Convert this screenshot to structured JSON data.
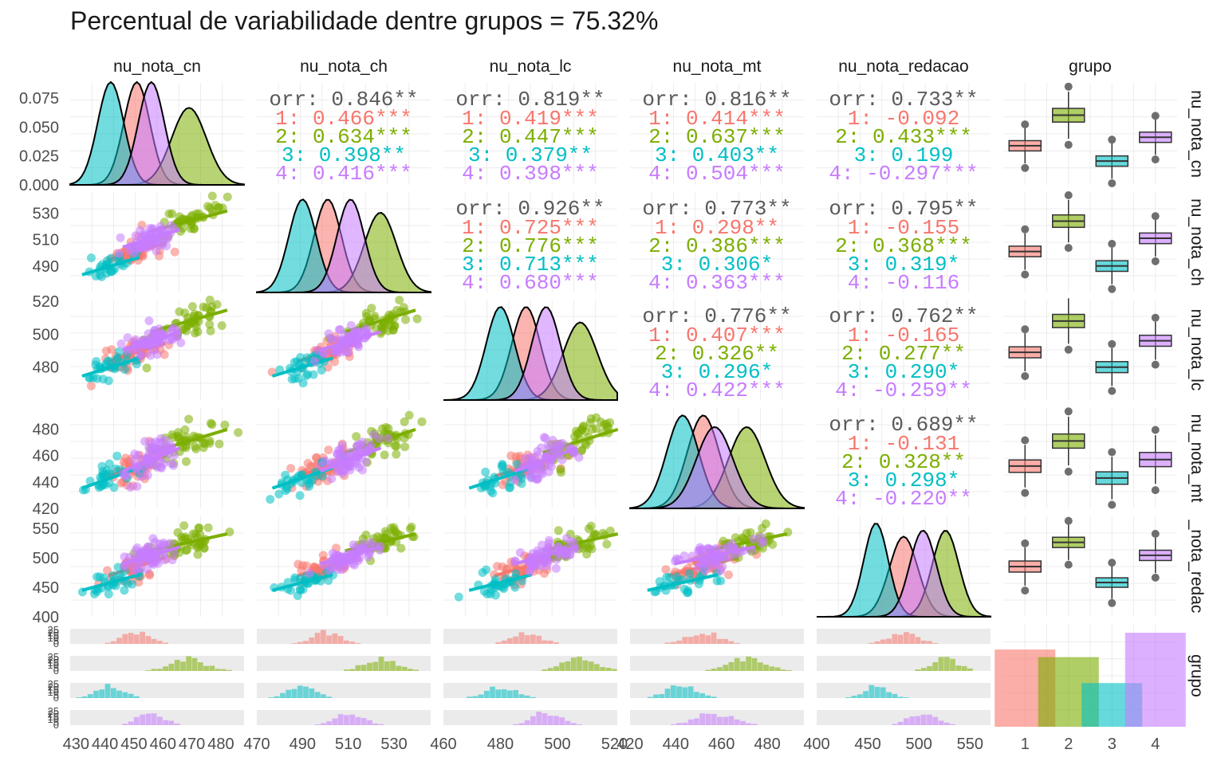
{
  "title": "Percentual de variabilidade dentre grupos = 75.32%",
  "chart_data": {
    "type": "pairs",
    "variables": [
      "nu_nota_cn",
      "nu_nota_ch",
      "nu_nota_lc",
      "nu_nota_mt",
      "nu_nota_redacao",
      "grupo"
    ],
    "row_labels": [
      "nu_nota_cn",
      "nu_nota_ch",
      "nu_nota_lc",
      "nu_nota_mt",
      "_nota_redac",
      "grupo"
    ],
    "group_labels": [
      "1",
      "2",
      "3",
      "4"
    ],
    "group_colors": [
      "#F8766D",
      "#7CAE00",
      "#00BFC4",
      "#C77CFF"
    ],
    "group_stats": {
      "means": [
        [
          451,
          501,
          489,
          452,
          485
        ],
        [
          469,
          524,
          508,
          471,
          526
        ],
        [
          442,
          490,
          480,
          443,
          458
        ],
        [
          456,
          511,
          496,
          457,
          504
        ]
      ],
      "sds": [
        [
          4.5,
          6,
          5,
          7,
          14
        ],
        [
          6,
          7,
          6,
          8,
          13
        ],
        [
          4.5,
          6,
          5,
          7,
          12
        ],
        [
          4.5,
          6,
          5,
          8,
          13
        ]
      ]
    },
    "group_counts": [
      92,
      83,
      52,
      112
    ],
    "axis_ranges": [
      [
        428,
        488
      ],
      [
        470,
        546
      ],
      [
        460,
        521
      ],
      [
        420,
        496
      ],
      [
        400,
        570
      ]
    ],
    "x_ticks": [
      [
        "430",
        "440",
        "450",
        "460",
        "470",
        "480"
      ],
      [
        "470",
        "490",
        "510",
        "530"
      ],
      [
        "460",
        "480",
        "500",
        "520"
      ],
      [
        "420",
        "440",
        "460",
        "480"
      ],
      [
        "400",
        "450",
        "500",
        "550"
      ]
    ],
    "x_tick_values": [
      [
        430,
        440,
        450,
        460,
        470,
        480
      ],
      [
        470,
        490,
        510,
        530
      ],
      [
        460,
        480,
        500,
        520
      ],
      [
        420,
        440,
        460,
        480
      ],
      [
        400,
        450,
        500,
        550
      ]
    ],
    "density_y_ticks": [
      "0.075",
      "0.050",
      "0.025",
      "0.000"
    ],
    "density_y_values": [
      0.075,
      0.05,
      0.025,
      0
    ],
    "density_y_max": 0.088,
    "y_ticks": {
      "1": [
        "530",
        "510",
        "490"
      ],
      "2": [
        "520",
        "500",
        "480"
      ],
      "3": [
        "480",
        "460",
        "440",
        "420"
      ],
      "4": [
        "550",
        "500",
        "450",
        "400"
      ]
    },
    "y_tick_values": {
      "1": [
        530,
        510,
        490
      ],
      "2": [
        520,
        500,
        480
      ],
      "3": [
        480,
        460,
        440,
        420
      ],
      "4": [
        550,
        500,
        450,
        400
      ]
    },
    "hist_y_ticks": [
      "0",
      "5",
      "10",
      "15",
      "20",
      "25"
    ],
    "bar_x_ticks": [
      "1",
      "2",
      "3",
      "4"
    ],
    "correlations": [
      {
        "row": 0,
        "col": 1,
        "overall": "orr: 0.846**",
        "groups": [
          "1: 0.466***",
          "2: 0.634***",
          "3: 0.398**",
          "4: 0.416***"
        ]
      },
      {
        "row": 0,
        "col": 2,
        "overall": "orr: 0.819**",
        "groups": [
          "1: 0.419***",
          "2: 0.447***",
          "3: 0.379**",
          "4: 0.398***"
        ]
      },
      {
        "row": 0,
        "col": 3,
        "overall": "orr: 0.816**",
        "groups": [
          "1: 0.414***",
          "2: 0.637***",
          "3: 0.403**",
          "4: 0.504***"
        ]
      },
      {
        "row": 0,
        "col": 4,
        "overall": "orr: 0.733**",
        "groups": [
          "1: -0.092",
          "2: 0.433***",
          "3: 0.199",
          "4: -0.297***"
        ]
      },
      {
        "row": 1,
        "col": 2,
        "overall": "orr: 0.926**",
        "groups": [
          "1: 0.725***",
          "2: 0.776***",
          "3: 0.713***",
          "4: 0.680***"
        ]
      },
      {
        "row": 1,
        "col": 3,
        "overall": "orr: 0.773**",
        "groups": [
          "1: 0.298**",
          "2: 0.386***",
          "3: 0.306*",
          "4: 0.363***"
        ]
      },
      {
        "row": 1,
        "col": 4,
        "overall": "orr: 0.795**",
        "groups": [
          "1: -0.155",
          "2: 0.368***",
          "3: 0.319*",
          "4: -0.116"
        ]
      },
      {
        "row": 2,
        "col": 3,
        "overall": "orr: 0.776**",
        "groups": [
          "1: 0.407***",
          "2: 0.326**",
          "3: 0.296*",
          "4: 0.422***"
        ]
      },
      {
        "row": 2,
        "col": 4,
        "overall": "orr: 0.762**",
        "groups": [
          "1: -0.165",
          "2: 0.277**",
          "3: 0.290*",
          "4: -0.259**"
        ]
      },
      {
        "row": 3,
        "col": 4,
        "overall": "orr: 0.689**",
        "groups": [
          "1: -0.131",
          "2: 0.328**",
          "3: 0.298*",
          "4: -0.220**"
        ]
      }
    ]
  }
}
